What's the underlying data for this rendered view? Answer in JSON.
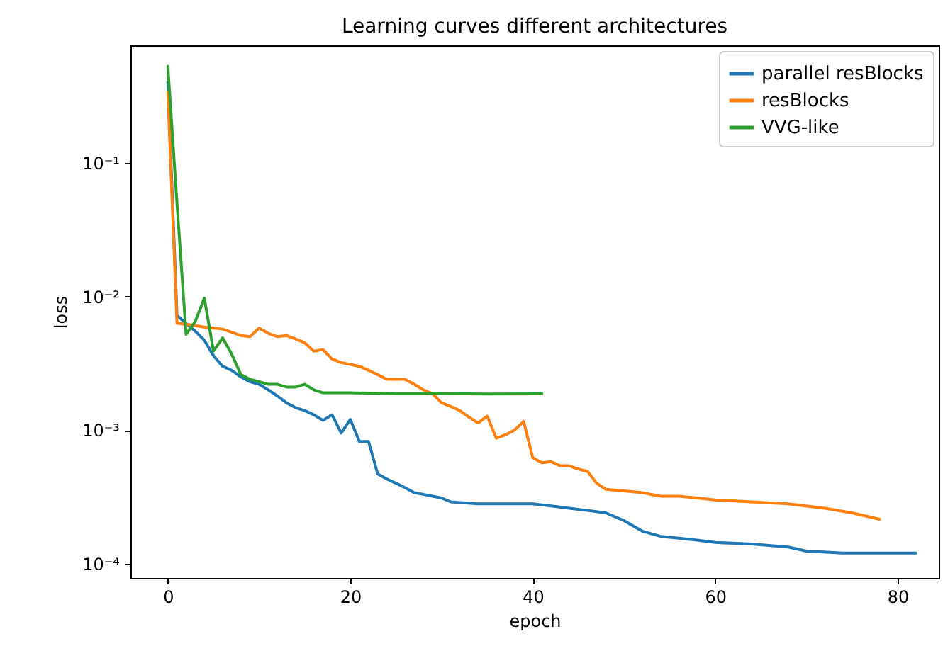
{
  "chart_data": {
    "type": "line",
    "title": "Learning curves different architectures",
    "xlabel": "epoch",
    "ylabel": "loss",
    "log": "y",
    "grid": false,
    "legend": "top right",
    "line_style": "solid",
    "marker": "none",
    "xlim": [
      -4.1,
      84.5
    ],
    "xticks": [
      0,
      20,
      40,
      60,
      80
    ],
    "ylim": [
      7.8e-05,
      0.76
    ],
    "yticks": [
      {
        "value": 0.0001,
        "label": "10⁻⁴"
      },
      {
        "value": 0.001,
        "label": "10⁻³"
      },
      {
        "value": 0.01,
        "label": "10⁻²"
      },
      {
        "value": 0.1,
        "label": "10⁻¹"
      }
    ],
    "series": [
      {
        "name": "parallel resBlocks",
        "color": "#1f77b4",
        "x": [
          0,
          1,
          2,
          3,
          4,
          5,
          6,
          7,
          8,
          9,
          10,
          11,
          12,
          13,
          14,
          15,
          16,
          17,
          18,
          19,
          20,
          21,
          22,
          23,
          24,
          25,
          26,
          27,
          28,
          29,
          30,
          31,
          34,
          37,
          40,
          42,
          44,
          46,
          48,
          50,
          52,
          54,
          56,
          58,
          60,
          64,
          68,
          70,
          74,
          78,
          82
        ],
        "values": [
          0.4,
          0.0072,
          0.0063,
          0.0055,
          0.0047,
          0.0036,
          0.003,
          0.0028,
          0.0025,
          0.0023,
          0.0022,
          0.002,
          0.0018,
          0.0016,
          0.00147,
          0.0014,
          0.0013,
          0.00118,
          0.0013,
          0.00095,
          0.0012,
          0.00082,
          0.00082,
          0.00047,
          0.00043,
          0.0004,
          0.00037,
          0.00034,
          0.00033,
          0.00032,
          0.00031,
          0.00029,
          0.00028,
          0.00028,
          0.00028,
          0.00027,
          0.00026,
          0.00025,
          0.00024,
          0.00021,
          0.000175,
          0.00016,
          0.000155,
          0.00015,
          0.000144,
          0.00014,
          0.000133,
          0.000124,
          0.00012,
          0.00012,
          0.00012
        ]
      },
      {
        "name": "resBlocks",
        "color": "#ff7f0e",
        "x": [
          0,
          1,
          2,
          4,
          6,
          8,
          9,
          10,
          11,
          12,
          13,
          14,
          15,
          16,
          17,
          18,
          19,
          20,
          21,
          22,
          23,
          24,
          25,
          26,
          27,
          28,
          29,
          30,
          31,
          32,
          33,
          34,
          35,
          36,
          37,
          38,
          39,
          40,
          41,
          42,
          43,
          44,
          45,
          46,
          47,
          48,
          50,
          52,
          54,
          56,
          58,
          60,
          64,
          68,
          72,
          75,
          78
        ],
        "values": [
          0.34,
          0.0063,
          0.0062,
          0.0059,
          0.0057,
          0.0051,
          0.005,
          0.0058,
          0.0053,
          0.005,
          0.0051,
          0.0048,
          0.0045,
          0.0039,
          0.004,
          0.0034,
          0.0032,
          0.0031,
          0.003,
          0.0028,
          0.0026,
          0.0024,
          0.0024,
          0.0024,
          0.0022,
          0.002,
          0.00187,
          0.0016,
          0.0015,
          0.0014,
          0.00125,
          0.00113,
          0.00127,
          0.00087,
          0.00092,
          0.001,
          0.00116,
          0.00062,
          0.00057,
          0.00058,
          0.00054,
          0.00054,
          0.00051,
          0.00049,
          0.0004,
          0.00036,
          0.00035,
          0.00034,
          0.00032,
          0.00032,
          0.00031,
          0.0003,
          0.00029,
          0.00028,
          0.00026,
          0.00024,
          0.000215
        ]
      },
      {
        "name": "VVG-like",
        "color": "#2ca02c",
        "x": [
          0,
          1,
          2,
          3,
          4,
          5,
          6,
          7,
          8,
          9,
          10,
          11,
          12,
          13,
          14,
          15,
          16,
          17,
          18,
          20,
          25,
          30,
          35,
          41
        ],
        "values": [
          0.53,
          0.05,
          0.0052,
          0.0065,
          0.0097,
          0.0039,
          0.0049,
          0.0037,
          0.0026,
          0.0024,
          0.0023,
          0.0022,
          0.0022,
          0.0021,
          0.0021,
          0.0022,
          0.002,
          0.0019,
          0.0019,
          0.0019,
          0.00187,
          0.00187,
          0.00186,
          0.00187
        ]
      }
    ]
  }
}
